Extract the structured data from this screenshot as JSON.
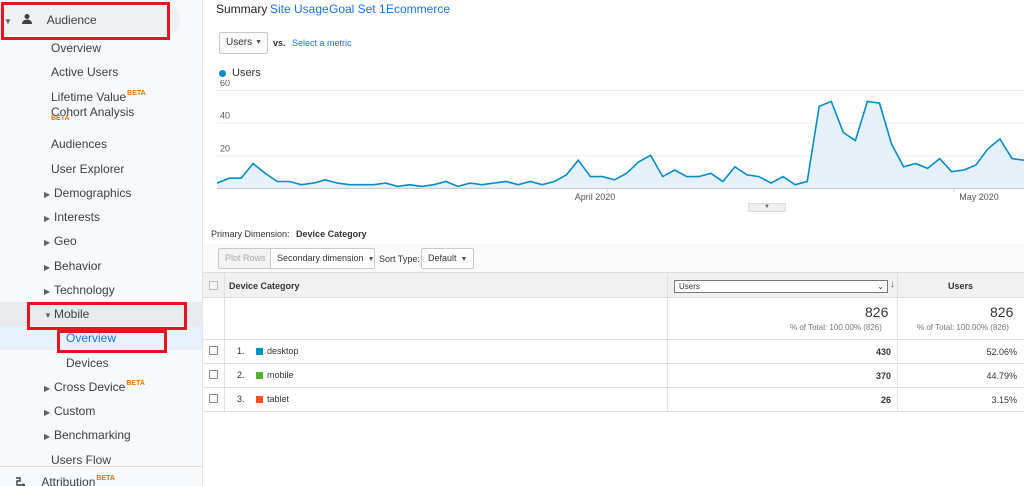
{
  "sidebar": {
    "audience": "Audience",
    "items": [
      {
        "label": "Overview",
        "beta": ""
      },
      {
        "label": "Active Users",
        "beta": ""
      },
      {
        "label": "Lifetime Value",
        "beta": "BETA"
      },
      {
        "label": "Cohort Analysis",
        "beta": "BETA"
      },
      {
        "label": "Audiences",
        "beta": ""
      },
      {
        "label": "User Explorer",
        "beta": ""
      }
    ],
    "expandables": [
      {
        "label": "Demographics"
      },
      {
        "label": "Interests"
      },
      {
        "label": "Geo"
      },
      {
        "label": "Behavior"
      },
      {
        "label": "Technology"
      }
    ],
    "mobile": "Mobile",
    "mobile_sub": [
      {
        "label": "Overview"
      },
      {
        "label": "Devices"
      }
    ],
    "after": [
      {
        "label": "Cross Device",
        "beta": "BETA"
      },
      {
        "label": "Custom",
        "beta": ""
      },
      {
        "label": "Benchmarking",
        "beta": ""
      }
    ],
    "users_flow": "Users Flow",
    "attribution": "Attribution",
    "attribution_beta": "BETA"
  },
  "tabs": [
    {
      "label": "Summary"
    },
    {
      "label": "Site Usage"
    },
    {
      "label": "Goal Set 1"
    },
    {
      "label": "Ecommerce"
    }
  ],
  "metric_selector": {
    "value": "Users",
    "vs": "vs.",
    "select_metric": "Select a metric"
  },
  "chart_data": {
    "type": "area",
    "series": [
      {
        "name": "Users",
        "values": [
          3,
          6,
          6,
          15,
          9,
          4,
          4,
          2,
          3,
          5,
          3,
          2,
          2,
          2,
          3,
          1,
          2,
          1,
          2,
          4,
          1,
          3,
          2,
          3,
          4,
          2,
          4,
          2,
          4,
          8,
          17,
          7,
          7,
          5,
          9,
          16,
          20,
          7,
          11,
          7,
          7,
          9,
          4,
          13,
          8,
          7,
          3,
          7,
          2,
          4,
          50,
          53,
          34,
          29,
          53,
          52,
          27,
          13,
          15,
          12,
          18,
          10,
          11,
          14,
          24,
          30,
          18,
          17
        ]
      }
    ],
    "yticks": [
      "60",
      "40",
      "20"
    ],
    "ylim": [
      0,
      60
    ],
    "xlabels": [
      "April 2020",
      "May 2020"
    ],
    "color": "#058dc7",
    "fill": "#e6f0f8"
  },
  "primary_dimension": {
    "label": "Primary Dimension:",
    "value": "Device Category"
  },
  "controls": {
    "plot_rows": "Plot Rows",
    "secondary": "Secondary dimension",
    "sort_type": "Sort Type:",
    "default": "Default"
  },
  "table": {
    "col_device": "Device Category",
    "col_metric_select": "Users",
    "col_users": "Users",
    "total": {
      "value": "826",
      "sub": "% of Total: 100.00% (826)"
    },
    "rows": [
      {
        "index": "1.",
        "name": "desktop",
        "color": "#058dc7",
        "users": "430",
        "pct": "52.06%"
      },
      {
        "index": "2.",
        "name": "mobile",
        "color": "#50b432",
        "users": "370",
        "pct": "44.79%"
      },
      {
        "index": "3.",
        "name": "tablet",
        "color": "#ed561b",
        "users": "26",
        "pct": "3.15%"
      }
    ]
  }
}
